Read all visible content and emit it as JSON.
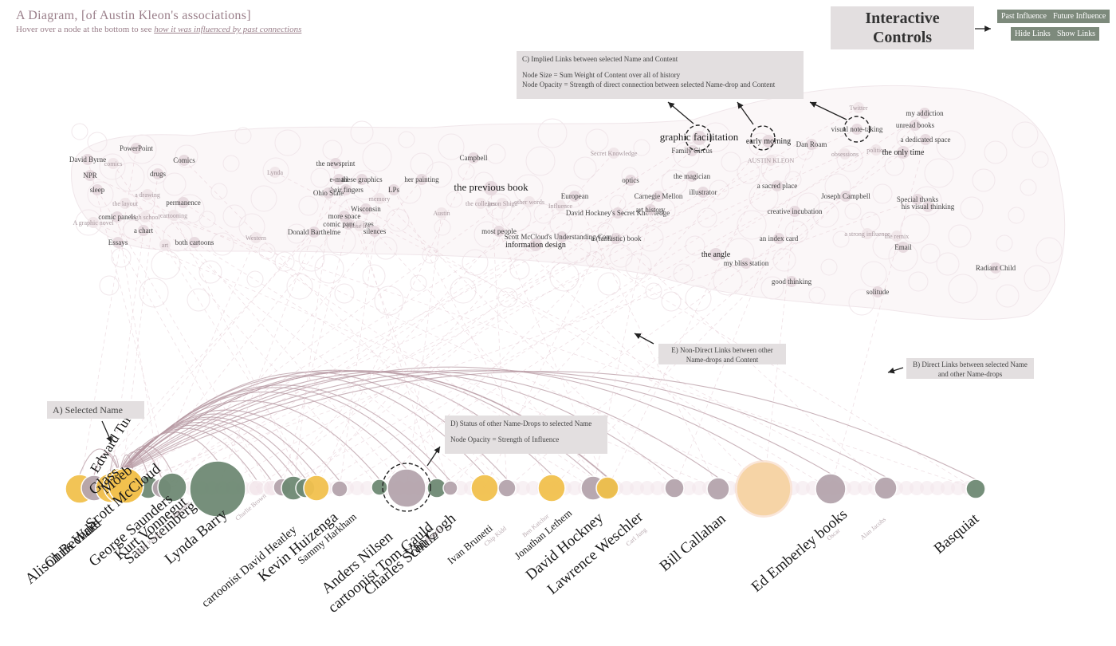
{
  "header": {
    "title": "A Diagram, [of Austin Kleon's associations]",
    "subtitle_prefix": "Hover over a node at the bottom to see ",
    "subtitle_link": "how it was influenced by past connections"
  },
  "controls": {
    "label": "Interactive Controls",
    "past_influence": "Past Influence",
    "future_influence": "Future Influence",
    "hide_links": "Hide Links",
    "show_links": "Show Links"
  },
  "callouts": {
    "implied_links": {
      "title": "C) Implied Links between selected Name and Content",
      "line1": "Node Size = Sum Weight of Content over all of history",
      "line2": "Node Opacity = Strength of direct connection between selected Name-drop and Content"
    },
    "non_direct": {
      "line1": "E) Non-Direct Links between other",
      "line2": "Name-drops and Content"
    },
    "direct": {
      "line1": "B) Direct Links between selected Name",
      "line2": "and other Name-drops"
    },
    "selected": {
      "line1": "A) Selected Name"
    },
    "status": {
      "line1": "D) Status of other Name-Drops to selected Name",
      "line2": "Node Opacity = Strength of Influence"
    }
  },
  "colors": {
    "pink": "#f3e4ea",
    "mauve": "#b5a5ad",
    "green": "#6f8a74",
    "yellow": "#f2c14e",
    "link": "#b79aa3",
    "panel": "#e3dfe0",
    "button": "#7d8a7c"
  },
  "content_nodes": [
    {
      "label": "PowerPoint",
      "size": "s"
    },
    {
      "label": "David Byrne",
      "size": "s"
    },
    {
      "label": "comics",
      "size": "f"
    },
    {
      "label": "Comics",
      "size": "s"
    },
    {
      "label": "NPR",
      "size": "s"
    },
    {
      "label": "drugs",
      "size": "s"
    },
    {
      "label": "sleep",
      "size": "s"
    },
    {
      "label": "a drawing",
      "size": "f"
    },
    {
      "label": "permanence",
      "size": "s"
    },
    {
      "label": "the layout",
      "size": "f"
    },
    {
      "label": "comic panels",
      "size": "s"
    },
    {
      "label": "cartooning",
      "size": "f"
    },
    {
      "label": "high school",
      "size": "f"
    },
    {
      "label": "A graphic novel",
      "size": "f"
    },
    {
      "label": "a chart",
      "size": "s"
    },
    {
      "label": "Essays",
      "size": "s"
    },
    {
      "label": "art",
      "size": "f"
    },
    {
      "label": "both cartoons",
      "size": "s"
    },
    {
      "label": "Lynda",
      "size": "f"
    },
    {
      "label": "Western",
      "size": "f"
    },
    {
      "label": "the newsprint",
      "size": "s"
    },
    {
      "label": "e-mail",
      "size": "s"
    },
    {
      "label": "these graphics",
      "size": "s"
    },
    {
      "label": "their fingers",
      "size": "s"
    },
    {
      "label": "Ohio State",
      "size": "s"
    },
    {
      "label": "memory",
      "size": "f"
    },
    {
      "label": "LPs",
      "size": "s"
    },
    {
      "label": "Wisconsin",
      "size": "s"
    },
    {
      "label": "more space",
      "size": "s"
    },
    {
      "label": "comic panel sizes",
      "size": "s"
    },
    {
      "label": "Those lists",
      "size": "f"
    },
    {
      "label": "silences",
      "size": "s"
    },
    {
      "label": "Donald Barthelme",
      "size": "s"
    },
    {
      "label": "her painting",
      "size": "s"
    },
    {
      "label": "Campbell",
      "size": "s"
    },
    {
      "label": "the previous book",
      "size": "l"
    },
    {
      "label": "the colleges",
      "size": "f"
    },
    {
      "label": "Jason Shiga",
      "size": "f"
    },
    {
      "label": "other words",
      "size": "f"
    },
    {
      "label": "Austin",
      "size": "f"
    },
    {
      "label": "most people",
      "size": "s"
    },
    {
      "label": "Scott McCloud's Understanding Comics",
      "size": "s"
    },
    {
      "label": "information design",
      "size": "m"
    },
    {
      "label": "Secret Knowledge",
      "size": "f"
    },
    {
      "label": "optics",
      "size": "s"
    },
    {
      "label": "European",
      "size": "s"
    },
    {
      "label": "Influence",
      "size": "f"
    },
    {
      "label": "David Hockney's Secret Knowledge",
      "size": "s"
    },
    {
      "label": "Carnegie Mellon",
      "size": "s"
    },
    {
      "label": "art history",
      "size": "s"
    },
    {
      "label": "a (fantastic) book",
      "size": "s"
    },
    {
      "label": "graphic facilitation",
      "size": "l"
    },
    {
      "label": "Family Circus",
      "size": "s"
    },
    {
      "label": "early morning",
      "size": "m"
    },
    {
      "label": "Dan Roam",
      "size": "s"
    },
    {
      "label": "visual note-taking",
      "size": "s"
    },
    {
      "label": "Twitter",
      "size": "f"
    },
    {
      "label": "my addiction",
      "size": "s"
    },
    {
      "label": "unread books",
      "size": "s"
    },
    {
      "label": "a dedicated space",
      "size": "s"
    },
    {
      "label": "obsessions",
      "size": "f"
    },
    {
      "label": "politics",
      "size": "f"
    },
    {
      "label": "the only time",
      "size": "m"
    },
    {
      "label": "AUSTIN KLEON",
      "size": "f"
    },
    {
      "label": "the magician",
      "size": "s"
    },
    {
      "label": "illustrator",
      "size": "s"
    },
    {
      "label": "a sacred place",
      "size": "s"
    },
    {
      "label": "Joseph Campbell",
      "size": "s"
    },
    {
      "label": "creative incubation",
      "size": "s"
    },
    {
      "label": "Special thanks",
      "size": "s"
    },
    {
      "label": "his visual thinking",
      "size": "s"
    },
    {
      "label": "an index card",
      "size": "s"
    },
    {
      "label": "a strong influence",
      "size": "f"
    },
    {
      "label": "the remix",
      "size": "f"
    },
    {
      "label": "Email",
      "size": "s"
    },
    {
      "label": "the angle",
      "size": "m"
    },
    {
      "label": "my bliss station",
      "size": "s"
    },
    {
      "label": "good thinking",
      "size": "s"
    },
    {
      "label": "Radiant Child",
      "size": "s"
    },
    {
      "label": "solitude",
      "size": "s"
    }
  ],
  "name_labels": [
    {
      "label": "Alison Bechdel",
      "size": "l"
    },
    {
      "label": "Chris Ware",
      "size": "l"
    },
    {
      "label": "Glass",
      "size": "l"
    },
    {
      "label": "Moeb",
      "size": "l"
    },
    {
      "label": "Scott McCloud",
      "size": "l"
    },
    {
      "label": "George Saunders",
      "size": "l"
    },
    {
      "label": "Kurt Vonnegut",
      "size": "l"
    },
    {
      "label": "Saul Steinberg",
      "size": "l"
    },
    {
      "label": "Jason Kottke",
      "size": "f"
    },
    {
      "label": "Lynda Barry",
      "size": "l"
    },
    {
      "label": "Lemony",
      "size": "f"
    },
    {
      "label": "cartoonist David Heatley",
      "size": "m"
    },
    {
      "label": "Kevin Huizenga",
      "size": "l"
    },
    {
      "label": "Charlie Brown",
      "size": "f"
    },
    {
      "label": "Sammy Harkham",
      "size": "s"
    },
    {
      "label": "Anders Nilsen",
      "size": "l"
    },
    {
      "label": "cartoonist Tom Gauld",
      "size": "l"
    },
    {
      "label": "Charles Schulz",
      "size": "l"
    },
    {
      "label": "Van Gogh",
      "size": "l"
    },
    {
      "label": "Brandon",
      "size": "f"
    },
    {
      "label": "Ivan Brunetti",
      "size": "s"
    },
    {
      "label": "Chip Kidd",
      "size": "f"
    },
    {
      "label": "Jonathan Lethem",
      "size": "s"
    },
    {
      "label": "Ben Katchor",
      "size": "f"
    },
    {
      "label": "David Hockney",
      "size": "l"
    },
    {
      "label": "Lawrence Weschler",
      "size": "l"
    },
    {
      "label": "Bill Callahan",
      "size": "l"
    },
    {
      "label": "Carl Jung",
      "size": "f"
    },
    {
      "label": "Ed Emberley books",
      "size": "l"
    },
    {
      "label": "Oscar",
      "size": "f"
    },
    {
      "label": "Alan Jacobs",
      "size": "f"
    },
    {
      "label": "Basquiat",
      "size": "l"
    }
  ],
  "selected_name": {
    "label": "Edward Tufte"
  },
  "name_nodes": [
    {
      "color": "yellow"
    },
    {
      "color": "mauve"
    },
    {
      "color": "yellow"
    },
    {
      "color": "yellow"
    },
    {
      "color": "green"
    },
    {
      "color": "green"
    },
    {
      "color": "mauve"
    },
    {
      "color": "green"
    },
    {
      "color": "green"
    },
    {
      "color": "pink"
    },
    {
      "color": "pink"
    },
    {
      "color": "mauve"
    },
    {
      "color": "green"
    },
    {
      "color": "green"
    },
    {
      "color": "yellow"
    },
    {
      "color": "mauve"
    },
    {
      "color": "green"
    },
    {
      "color": "mauve"
    },
    {
      "color": "green"
    },
    {
      "color": "mauve"
    },
    {
      "color": "yellow"
    },
    {
      "color": "mauve"
    },
    {
      "color": "yellow"
    },
    {
      "color": "mauve"
    },
    {
      "color": "green"
    },
    {
      "color": "yellow"
    },
    {
      "color": "mauve"
    },
    {
      "color": "mauve"
    },
    {
      "color": "yellow"
    },
    {
      "color": "mauve"
    },
    {
      "color": "mauve"
    },
    {
      "color": "green"
    }
  ]
}
